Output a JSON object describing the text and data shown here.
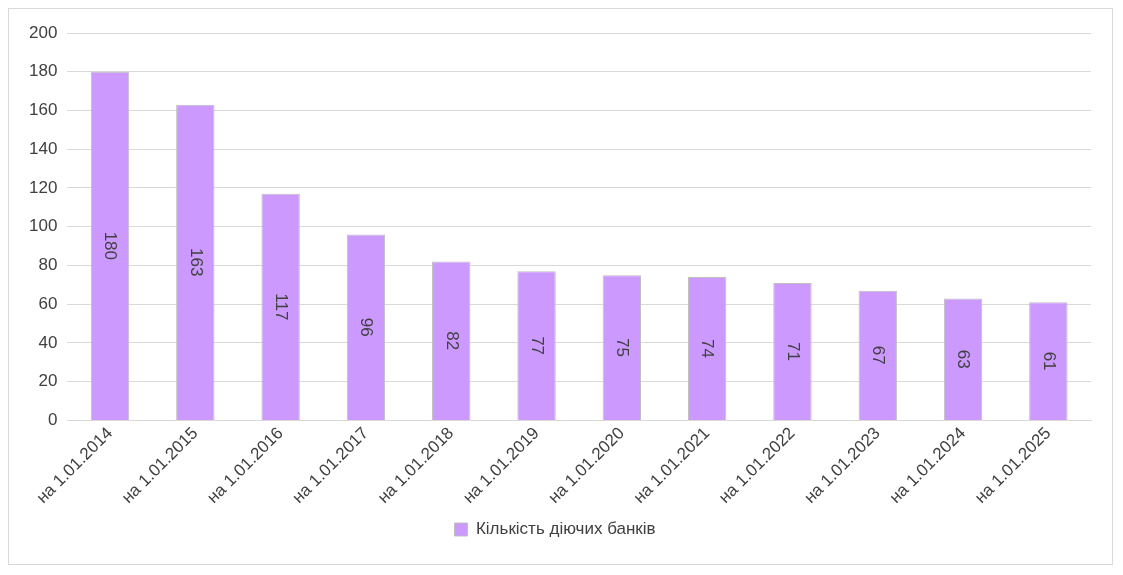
{
  "chart_data": {
    "type": "bar",
    "categories": [
      "на 1.01.2014",
      "на 1.01.2015",
      "на 1.01.2016",
      "на 1.01.2017",
      "на 1.01.2018",
      "на 1.01.2019",
      "на 1.01.2020",
      "на 1.01.2021",
      "на 1.01.2022",
      "на 1.01.2023",
      "на 1.01.2024",
      "на 1.01.2025"
    ],
    "series": [
      {
        "name": "Кількість діючих банків",
        "color": "#cc99ff",
        "values": [
          180,
          163,
          117,
          96,
          82,
          77,
          75,
          74,
          71,
          67,
          63,
          61
        ]
      }
    ],
    "ylim": [
      0,
      200
    ],
    "yticks": [
      0,
      20,
      40,
      60,
      80,
      100,
      120,
      140,
      160,
      180,
      200
    ],
    "grid": "y",
    "legend": "bottom",
    "data_labels": true
  }
}
